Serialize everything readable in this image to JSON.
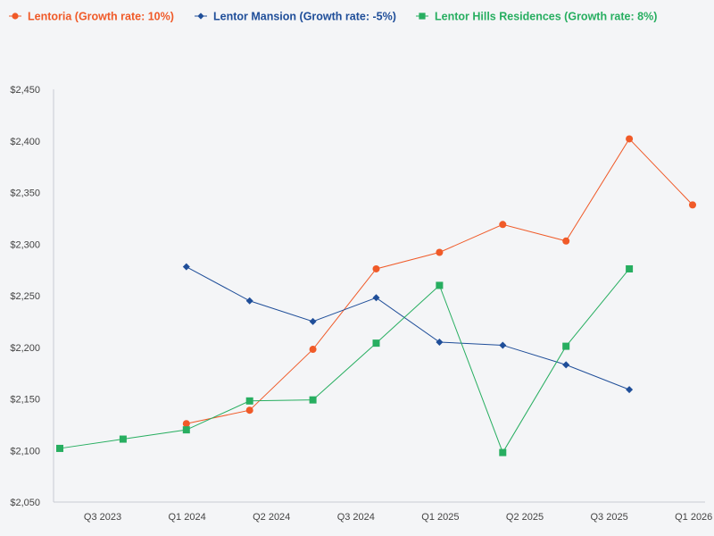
{
  "chart_data": {
    "type": "line",
    "title": "",
    "xlabel": "",
    "ylabel": "",
    "ylim": [
      2050,
      2450
    ],
    "y_ticks": [
      2050,
      2100,
      2150,
      2200,
      2250,
      2300,
      2350,
      2400,
      2450
    ],
    "y_tick_labels": [
      "$2,050",
      "$2,100",
      "$2,150",
      "$2,200",
      "$2,250",
      "$2,300",
      "$2,350",
      "$2,400",
      "$2,450"
    ],
    "x_tick_labels": [
      "Q3 2023",
      "Q1 2024",
      "Q2 2024",
      "Q3 2024",
      "Q1 2025",
      "Q2 2025",
      "Q3 2025",
      "Q1 2026"
    ],
    "legend_position": "top",
    "grid": false,
    "series": [
      {
        "name": "Lentoria (Growth rate: 10%)",
        "color": "#f05a28",
        "marker": "circle",
        "x": [
          2,
          3,
          4,
          5,
          6,
          7,
          8,
          9,
          10
        ],
        "values": [
          2126,
          2139,
          2198,
          2276,
          2292,
          2319,
          2303,
          2402,
          2338
        ]
      },
      {
        "name": "Lentor Mansion (Growth rate: -5%)",
        "color": "#1f4e99",
        "marker": "diamond",
        "x": [
          2,
          3,
          4,
          5,
          6,
          7,
          8,
          9
        ],
        "values": [
          2278,
          2245,
          2225,
          2248,
          2205,
          2202,
          2183,
          2159
        ]
      },
      {
        "name": "Lentor Hills Residences (Growth rate: 8%)",
        "color": "#27ae60",
        "marker": "square",
        "x": [
          0,
          1,
          2,
          3,
          4,
          5,
          6,
          7,
          8,
          9
        ],
        "values": [
          2102,
          2111,
          2120,
          2148,
          2149,
          2204,
          2260,
          2098,
          2201,
          2276
        ]
      }
    ]
  }
}
